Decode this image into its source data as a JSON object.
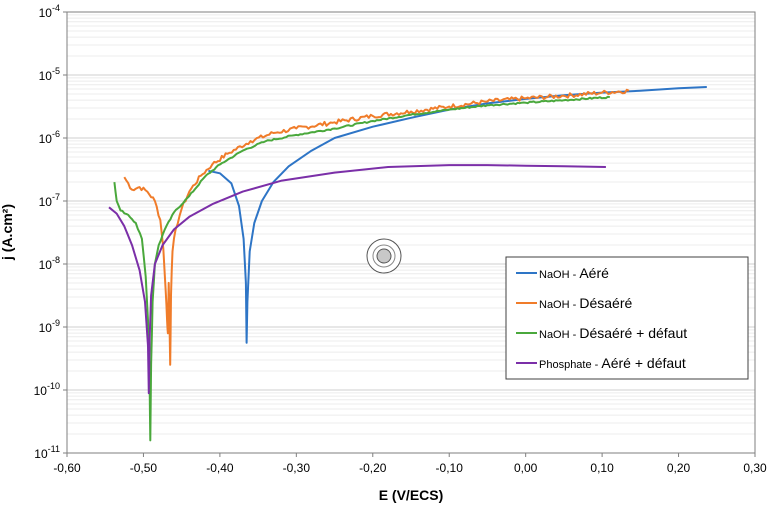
{
  "chart_data": {
    "type": "line",
    "xlabel": "E (V/ECS)",
    "ylabel": "j (A.cm²)",
    "y_scale": "log",
    "xlim": [
      -0.6,
      0.3
    ],
    "ylim_exponent": [
      -11,
      -4
    ],
    "x_ticks": [
      "-0,60",
      "-0,50",
      "-0,40",
      "-0,30",
      "-0,20",
      "-0,10",
      "0,00",
      "0,10",
      "0,20",
      "0,30"
    ],
    "y_ticks": [
      {
        "base": "10",
        "exp": "-11"
      },
      {
        "base": "10",
        "exp": "-10"
      },
      {
        "base": "10",
        "exp": "-9"
      },
      {
        "base": "10",
        "exp": "-8"
      },
      {
        "base": "10",
        "exp": "-7"
      },
      {
        "base": "10",
        "exp": "-6"
      },
      {
        "base": "10",
        "exp": "-5"
      },
      {
        "base": "10",
        "exp": "-4"
      }
    ],
    "grid": true,
    "legend_position": "right",
    "series": [
      {
        "name": "NaOH - Aéré",
        "legend_prefix": "NaOH - ",
        "legend_main": "Aéré",
        "color": "#2e75c6",
        "noise": 0,
        "points": [
          [
            -0.415,
            -6.52
          ],
          [
            -0.4,
            -6.56
          ],
          [
            -0.385,
            -6.72
          ],
          [
            -0.375,
            -7.08
          ],
          [
            -0.369,
            -7.6
          ],
          [
            -0.366,
            -8.3
          ],
          [
            -0.365,
            -9.25
          ],
          [
            -0.364,
            -8.6
          ],
          [
            -0.361,
            -7.8
          ],
          [
            -0.355,
            -7.35
          ],
          [
            -0.345,
            -7.0
          ],
          [
            -0.33,
            -6.7
          ],
          [
            -0.31,
            -6.45
          ],
          [
            -0.28,
            -6.2
          ],
          [
            -0.25,
            -6.0
          ],
          [
            -0.2,
            -5.82
          ],
          [
            -0.15,
            -5.68
          ],
          [
            -0.1,
            -5.55
          ],
          [
            -0.05,
            -5.45
          ],
          [
            0.0,
            -5.38
          ],
          [
            0.05,
            -5.32
          ],
          [
            0.1,
            -5.28
          ],
          [
            0.15,
            -5.25
          ],
          [
            0.2,
            -5.21
          ],
          [
            0.237,
            -5.19
          ]
        ]
      },
      {
        "name": "NaOH - Désaéré",
        "legend_prefix": "NaOH - ",
        "legend_main": "Désaéré",
        "color": "#f07c2a",
        "noise": 0.035,
        "points": [
          [
            -0.525,
            -6.62
          ],
          [
            -0.515,
            -6.82
          ],
          [
            -0.505,
            -6.78
          ],
          [
            -0.495,
            -6.85
          ],
          [
            -0.485,
            -7.0
          ],
          [
            -0.478,
            -7.3
          ],
          [
            -0.474,
            -7.75
          ],
          [
            -0.471,
            -8.4
          ],
          [
            -0.469,
            -8.9
          ],
          [
            -0.468,
            -9.1
          ],
          [
            -0.467,
            -8.3
          ],
          [
            -0.466,
            -8.8
          ],
          [
            -0.465,
            -9.6
          ],
          [
            -0.464,
            -8.5
          ],
          [
            -0.462,
            -7.8
          ],
          [
            -0.458,
            -7.45
          ],
          [
            -0.45,
            -7.12
          ],
          [
            -0.44,
            -6.85
          ],
          [
            -0.425,
            -6.6
          ],
          [
            -0.41,
            -6.42
          ],
          [
            -0.39,
            -6.25
          ],
          [
            -0.36,
            -6.05
          ],
          [
            -0.33,
            -5.92
          ],
          [
            -0.3,
            -5.85
          ],
          [
            -0.25,
            -5.75
          ],
          [
            -0.2,
            -5.65
          ],
          [
            -0.15,
            -5.58
          ],
          [
            -0.1,
            -5.5
          ],
          [
            -0.05,
            -5.42
          ],
          [
            0.0,
            -5.37
          ],
          [
            0.05,
            -5.33
          ],
          [
            0.1,
            -5.28
          ],
          [
            0.135,
            -5.25
          ]
        ]
      },
      {
        "name": "NaOH - Désaéré + défaut",
        "legend_prefix": "NaOH - ",
        "legend_main": "Désaéré + défaut",
        "color": "#4aa83c",
        "noise": 0.012,
        "points": [
          [
            -0.538,
            -6.7
          ],
          [
            -0.535,
            -7.0
          ],
          [
            -0.53,
            -7.15
          ],
          [
            -0.52,
            -7.22
          ],
          [
            -0.51,
            -7.35
          ],
          [
            -0.502,
            -7.6
          ],
          [
            -0.497,
            -8.2
          ],
          [
            -0.494,
            -8.9
          ],
          [
            -0.492,
            -9.8
          ],
          [
            -0.491,
            -10.8
          ],
          [
            -0.49,
            -9.6
          ],
          [
            -0.488,
            -8.6
          ],
          [
            -0.485,
            -8.0
          ],
          [
            -0.48,
            -7.7
          ],
          [
            -0.472,
            -7.45
          ],
          [
            -0.46,
            -7.18
          ],
          [
            -0.44,
            -6.92
          ],
          [
            -0.42,
            -6.62
          ],
          [
            -0.4,
            -6.42
          ],
          [
            -0.37,
            -6.2
          ],
          [
            -0.34,
            -6.05
          ],
          [
            -0.3,
            -5.95
          ],
          [
            -0.25,
            -5.85
          ],
          [
            -0.2,
            -5.73
          ],
          [
            -0.15,
            -5.63
          ],
          [
            -0.1,
            -5.55
          ],
          [
            -0.05,
            -5.48
          ],
          [
            0.0,
            -5.44
          ],
          [
            0.05,
            -5.4
          ],
          [
            0.11,
            -5.35
          ]
        ]
      },
      {
        "name": "Phosphate - Aéré + défaut",
        "legend_prefix": "Phosphate - ",
        "legend_main": "Aéré + défaut",
        "color": "#7b2fa8",
        "noise": 0,
        "points": [
          [
            -0.545,
            -7.1
          ],
          [
            -0.535,
            -7.2
          ],
          [
            -0.525,
            -7.4
          ],
          [
            -0.515,
            -7.7
          ],
          [
            -0.505,
            -8.1
          ],
          [
            -0.498,
            -8.6
          ],
          [
            -0.494,
            -9.3
          ],
          [
            -0.493,
            -10.05
          ],
          [
            -0.492,
            -9.2
          ],
          [
            -0.49,
            -8.5
          ],
          [
            -0.485,
            -8.0
          ],
          [
            -0.475,
            -7.7
          ],
          [
            -0.46,
            -7.45
          ],
          [
            -0.44,
            -7.25
          ],
          [
            -0.41,
            -7.05
          ],
          [
            -0.37,
            -6.85
          ],
          [
            -0.32,
            -6.68
          ],
          [
            -0.25,
            -6.55
          ],
          [
            -0.18,
            -6.46
          ],
          [
            -0.1,
            -6.43
          ],
          [
            -0.05,
            -6.43
          ],
          [
            0.0,
            -6.44
          ],
          [
            0.05,
            -6.45
          ],
          [
            0.105,
            -6.46
          ]
        ]
      }
    ]
  }
}
